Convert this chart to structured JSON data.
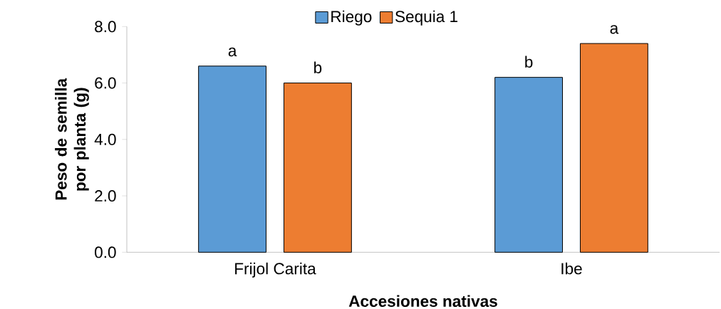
{
  "chart_data": {
    "type": "bar",
    "xlabel": "Accesiones nativas",
    "ylabel": "Peso de semilla por planta (g)",
    "categories": [
      "Frijol Carita",
      "Ibe"
    ],
    "series": [
      {
        "name": "Riego",
        "color": "#5b9bd5",
        "values": [
          6.6,
          6.2
        ]
      },
      {
        "name": "Sequia 1",
        "color": "#ed7d31",
        "values": [
          6.0,
          7.4
        ]
      }
    ],
    "ylim": [
      0,
      8
    ],
    "yticks": [
      {
        "value": 0,
        "label": "0.0"
      },
      {
        "value": 2,
        "label": "2.0"
      },
      {
        "value": 4,
        "label": "4.0"
      },
      {
        "value": 6,
        "label": "6.0"
      },
      {
        "value": 8,
        "label": "8.0"
      }
    ],
    "grid": false,
    "legend": "top",
    "annotations": [
      "a",
      "b",
      "b",
      "a"
    ]
  }
}
